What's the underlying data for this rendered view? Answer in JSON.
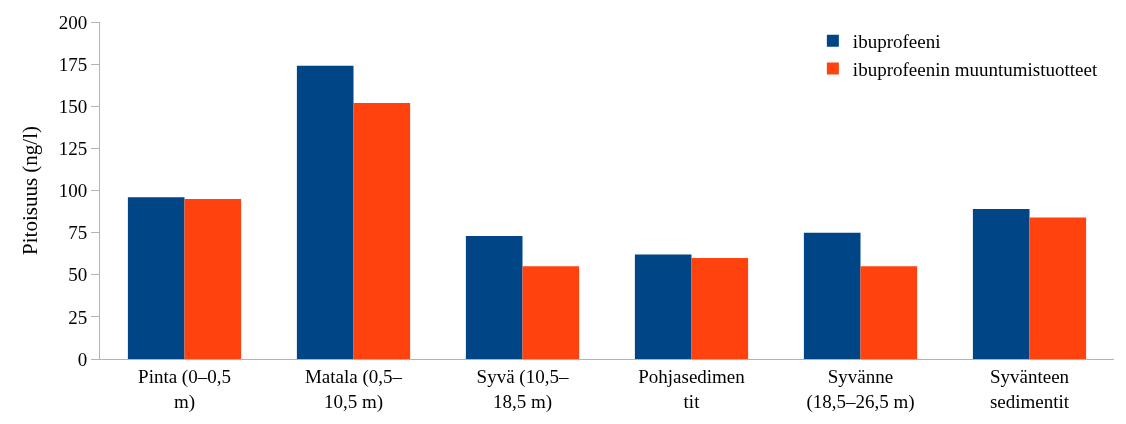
{
  "chart_data": {
    "type": "bar",
    "ylabel": "Pitoisuus (ng/l)",
    "categories": [
      "Pinta (0–0,5 m)",
      "Matala (0,5–10,5 m)",
      "Syvä (10,5–18,5 m)",
      "Pohjasedimentit",
      "Syvänne (18,5–26,5 m)",
      "Syvänteen sedimentit"
    ],
    "series": [
      {
        "name": "ibuprofeeni",
        "color": "#004586",
        "values": [
          96,
          174,
          73,
          62,
          75,
          89
        ]
      },
      {
        "name": "ibuprofeenin muuntumistuotteet",
        "color": "#ff420e",
        "values": [
          95,
          152,
          55,
          60,
          55,
          84
        ]
      }
    ],
    "ylim": [
      0,
      200
    ],
    "yticks": [
      0,
      25,
      50,
      75,
      100,
      125,
      150,
      175,
      200
    ],
    "legend": "top right"
  }
}
